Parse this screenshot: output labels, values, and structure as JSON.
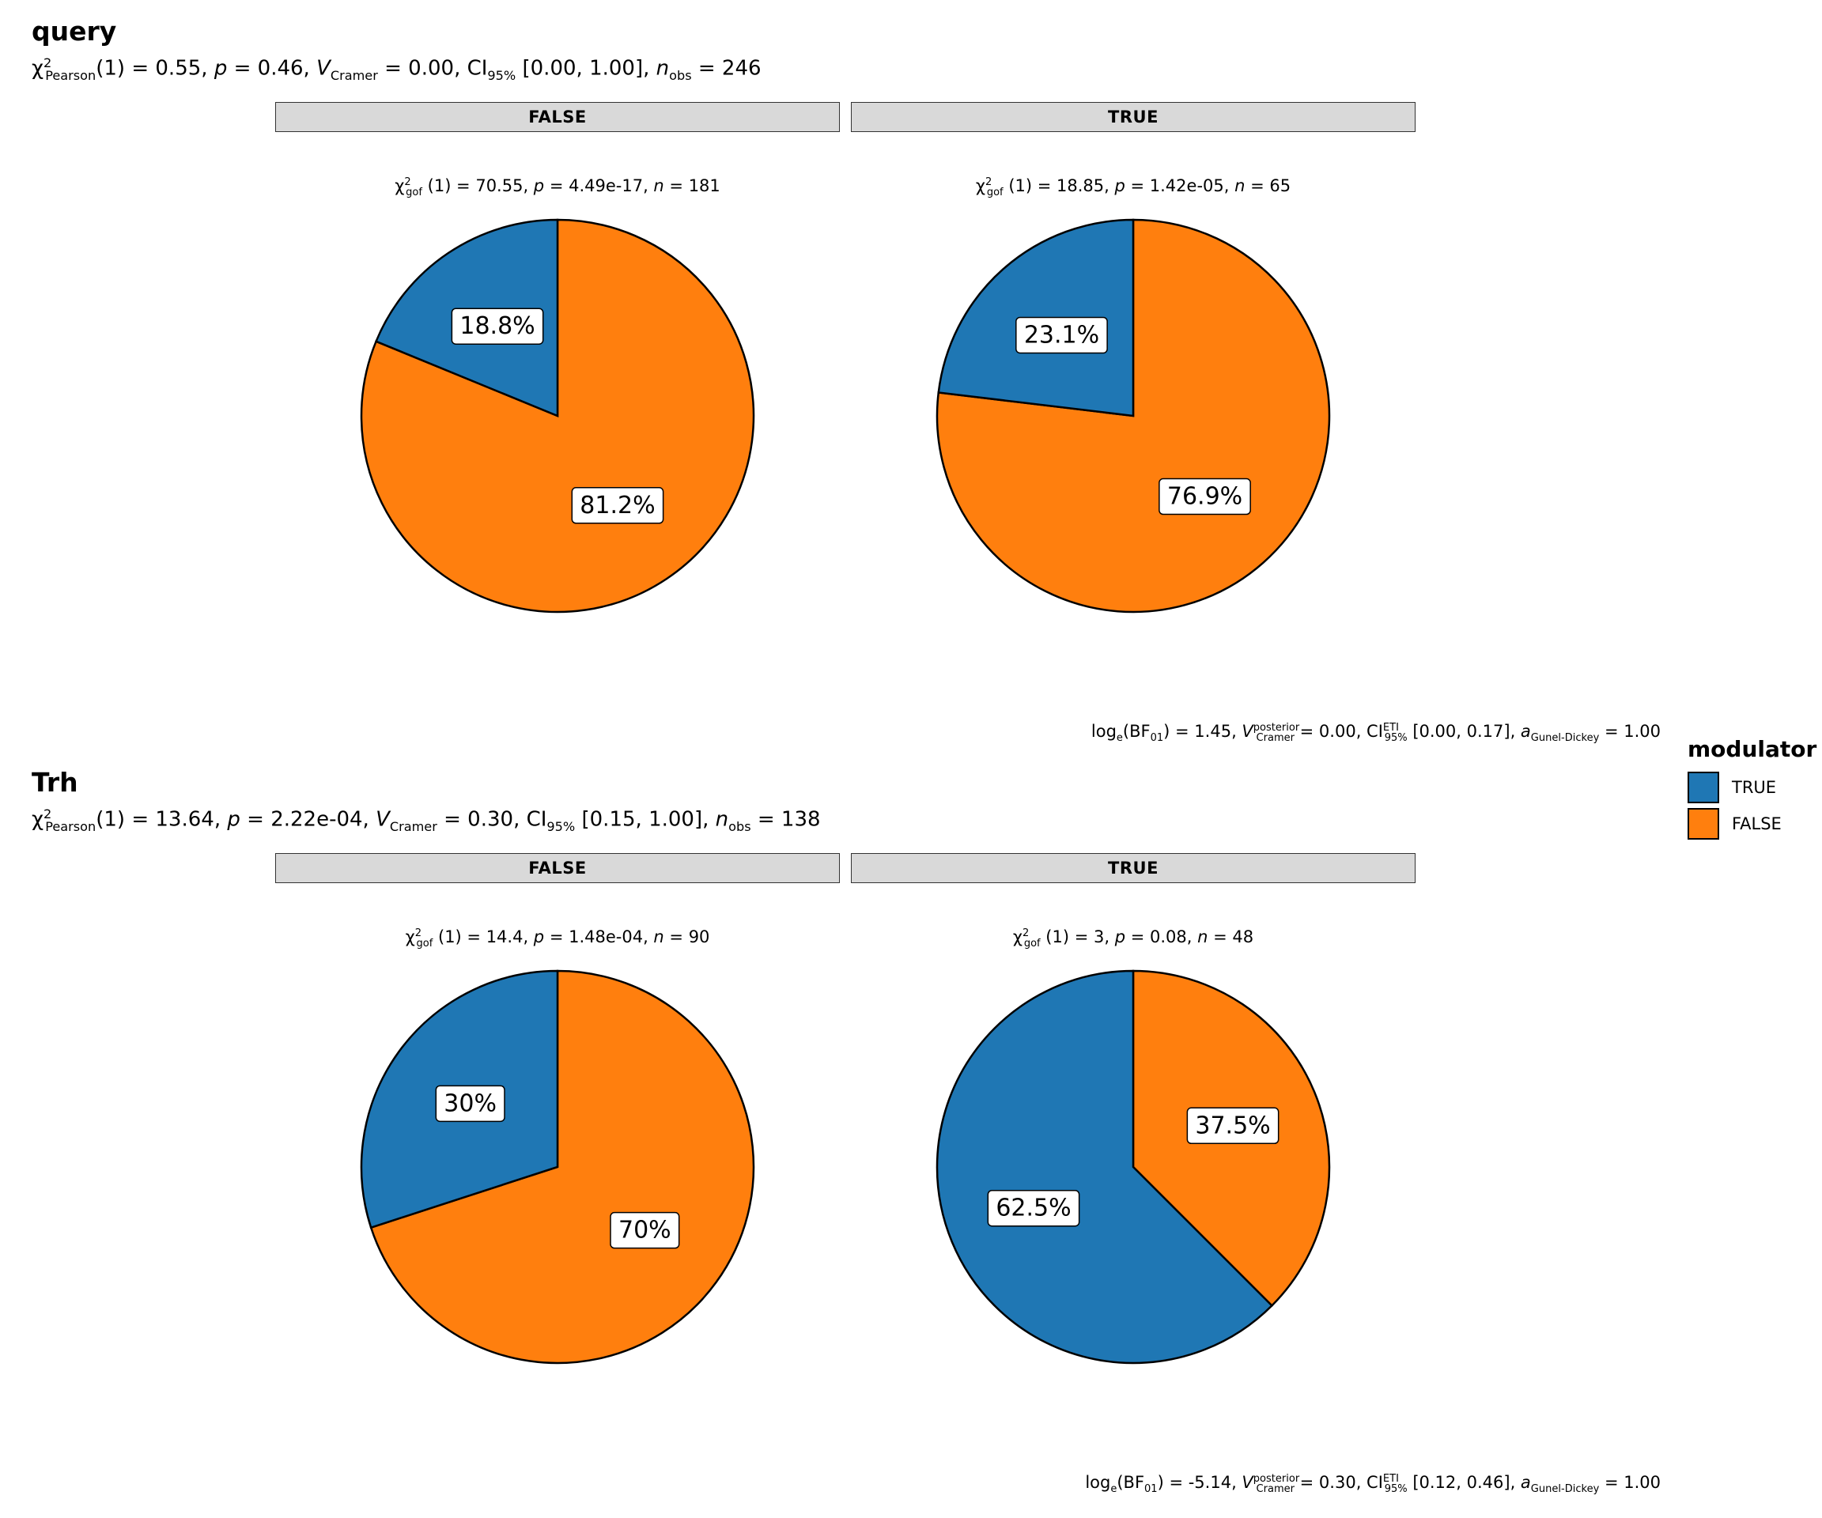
{
  "legend": {
    "title": "modulator",
    "items": [
      {
        "label": "TRUE",
        "color": "#1f77b4"
      },
      {
        "label": "FALSE",
        "color": "#ff7f0e"
      }
    ]
  },
  "chart_data": [
    {
      "type": "pie",
      "title": "query",
      "subtitle": {
        "stat_symbol": "χ",
        "stat_sup": "2",
        "stat_sub": "Pearson",
        "df": "(1) = 0.55, ",
        "p_label": "p",
        "p_value": " = 0.46, ",
        "v_label": "V",
        "v_sub": "Cramer",
        "v_value": " = 0.00, ",
        "ci_label": "CI",
        "ci_sub": "95%",
        "ci_value": " [0.00, 1.00], ",
        "n_label": "n",
        "n_sub": "obs",
        "n_value": " = 246"
      },
      "caption": {
        "log_label": "log",
        "log_sub": "e",
        "bf_label": "(BF",
        "bf_sub": "01",
        "bf_value": ") = 1.45, ",
        "v_label": "V",
        "v_sup": "posterior",
        "v_sub": "Cramer",
        "v_value": " = 0.00, ",
        "ci_label": "CI",
        "ci_sup": "ETI",
        "ci_sub": "95%",
        "ci_value": " [0.00, 0.17], ",
        "a_label": "a",
        "a_sub": "Gunel-Dickey",
        "a_value": " = 1.00"
      },
      "facets": [
        {
          "strip": "FALSE",
          "subtitle": {
            "chi": "χ",
            "sup": "2",
            "sub": "gof",
            "stat": " (1) = 70.55,  ",
            "p_label": "p",
            "p_value": " = 4.49e-17,  ",
            "n_label": "n",
            "n_value": " = 181"
          },
          "slices": [
            {
              "category": "TRUE",
              "value": 18.8,
              "label": "18.8%"
            },
            {
              "category": "FALSE",
              "value": 81.2,
              "label": "81.2%"
            }
          ]
        },
        {
          "strip": "TRUE",
          "subtitle": {
            "chi": "χ",
            "sup": "2",
            "sub": "gof",
            "stat": " (1) = 18.85,  ",
            "p_label": "p",
            "p_value": " = 1.42e-05,  ",
            "n_label": "n",
            "n_value": " = 65"
          },
          "slices": [
            {
              "category": "TRUE",
              "value": 23.1,
              "label": "23.1%"
            },
            {
              "category": "FALSE",
              "value": 76.9,
              "label": "76.9%"
            }
          ]
        }
      ]
    },
    {
      "type": "pie",
      "title": "Trh",
      "subtitle": {
        "stat_symbol": "χ",
        "stat_sup": "2",
        "stat_sub": "Pearson",
        "df": "(1) = 13.64, ",
        "p_label": "p",
        "p_value": " = 2.22e-04, ",
        "v_label": "V",
        "v_sub": "Cramer",
        "v_value": " = 0.30, ",
        "ci_label": "CI",
        "ci_sub": "95%",
        "ci_value": " [0.15, 1.00], ",
        "n_label": "n",
        "n_sub": "obs",
        "n_value": " = 138"
      },
      "caption": {
        "log_label": "log",
        "log_sub": "e",
        "bf_label": "(BF",
        "bf_sub": "01",
        "bf_value": ") = -5.14, ",
        "v_label": "V",
        "v_sup": "posterior",
        "v_sub": "Cramer",
        "v_value": " = 0.30, ",
        "ci_label": "CI",
        "ci_sup": "ETI",
        "ci_sub": "95%",
        "ci_value": " [0.12, 0.46], ",
        "a_label": "a",
        "a_sub": "Gunel-Dickey",
        "a_value": " = 1.00"
      },
      "facets": [
        {
          "strip": "FALSE",
          "subtitle": {
            "chi": "χ",
            "sup": "2",
            "sub": "gof",
            "stat": " (1) = 14.4,  ",
            "p_label": "p",
            "p_value": " = 1.48e-04,  ",
            "n_label": "n",
            "n_value": " = 90"
          },
          "slices": [
            {
              "category": "TRUE",
              "value": 30,
              "label": "30%"
            },
            {
              "category": "FALSE",
              "value": 70,
              "label": "70%"
            }
          ]
        },
        {
          "strip": "TRUE",
          "subtitle": {
            "chi": "χ",
            "sup": "2",
            "sub": "gof",
            "stat": " (1) = 3,  ",
            "p_label": "p",
            "p_value": " = 0.08,  ",
            "n_label": "n",
            "n_value": " = 48"
          },
          "slices": [
            {
              "category": "TRUE",
              "value": 62.5,
              "label": "62.5%"
            },
            {
              "category": "FALSE",
              "value": 37.5,
              "label": "37.5%"
            }
          ]
        }
      ]
    }
  ]
}
